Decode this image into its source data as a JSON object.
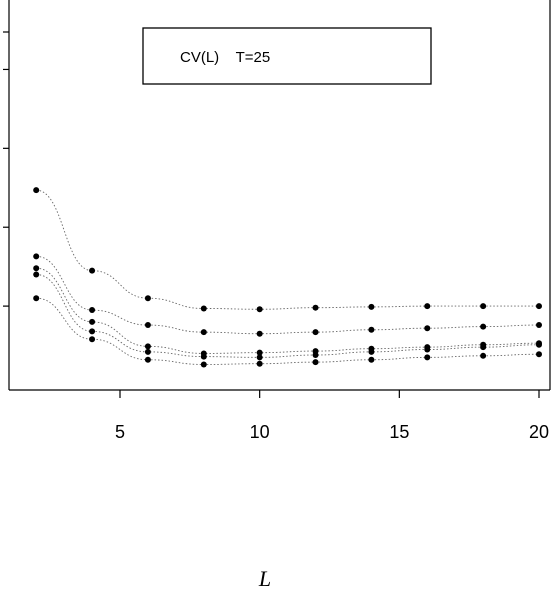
{
  "chart_data": {
    "type": "scatter",
    "title": "",
    "xlabel": "L",
    "ylabel": "",
    "legend": {
      "text": "CV(L)    T=25",
      "placement": "top-center"
    },
    "x": [
      2,
      4,
      6,
      8,
      10,
      12,
      14,
      16,
      18,
      20
    ],
    "xticks": [
      "5",
      "10",
      "15",
      "20"
    ],
    "xlim": [
      1.6,
      20.5
    ],
    "ylim": [
      0,
      4.5
    ],
    "grid": false,
    "series": [
      {
        "values": [
          2.47,
          1.45,
          1.1,
          0.97,
          0.96,
          0.98,
          0.99,
          1.0,
          1.0,
          1.0
        ]
      },
      {
        "values": [
          1.63,
          0.95,
          0.76,
          0.67,
          0.65,
          0.67,
          0.7,
          0.72,
          0.74,
          0.76
        ]
      },
      {
        "values": [
          1.48,
          0.8,
          0.49,
          0.4,
          0.41,
          0.43,
          0.46,
          0.48,
          0.51,
          0.53
        ]
      },
      {
        "values": [
          1.4,
          0.68,
          0.42,
          0.36,
          0.35,
          0.38,
          0.42,
          0.45,
          0.48,
          0.51
        ]
      },
      {
        "values": [
          1.1,
          0.58,
          0.32,
          0.26,
          0.27,
          0.29,
          0.32,
          0.35,
          0.37,
          0.39
        ]
      }
    ]
  }
}
